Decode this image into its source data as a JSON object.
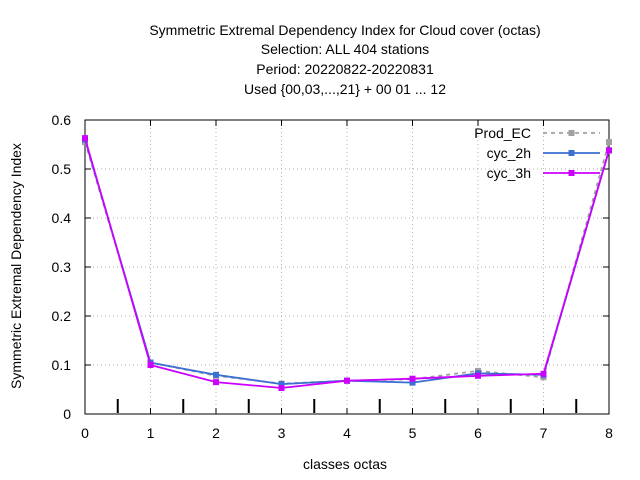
{
  "chart_data": {
    "type": "line",
    "title_lines": [
      "Symmetric Extremal Dependency Index  for Cloud cover (octas)",
      "Selection: ALL    404 stations",
      "Period: 20220822-20220831",
      "Used {00,03,...,21} + 00 01 ... 12"
    ],
    "xlabel": "classes octas",
    "ylabel": "Symmetric Extremal Dependency Index",
    "xlim": [
      0,
      8
    ],
    "ylim": [
      0,
      0.6
    ],
    "x_ticks": [
      "0",
      "1",
      "2",
      "3",
      "4",
      "5",
      "6",
      "7",
      "8"
    ],
    "y_ticks": [
      "0",
      "0.1",
      "0.2",
      "0.3",
      "0.4",
      "0.5",
      "0.6"
    ],
    "grid": true,
    "legend_position": "top-right",
    "x": [
      0,
      1,
      2,
      3,
      4,
      5,
      6,
      7,
      8
    ],
    "series": [
      {
        "name": "Prod_EC",
        "values": [
          0.555,
          0.105,
          0.078,
          0.062,
          0.068,
          0.071,
          0.088,
          0.075,
          0.555
        ],
        "color": "#a0a0a0",
        "dashed": true
      },
      {
        "name": "cyc_2h",
        "values": [
          0.56,
          0.105,
          0.08,
          0.061,
          0.068,
          0.064,
          0.083,
          0.08,
          0.538
        ],
        "color": "#3b6fd1",
        "dashed": false
      },
      {
        "name": "cyc_3h",
        "values": [
          0.563,
          0.1,
          0.065,
          0.053,
          0.068,
          0.072,
          0.078,
          0.082,
          0.538
        ],
        "color": "#cc00ff",
        "dashed": false
      }
    ],
    "bottom_markers_x": [
      0.5,
      1.5,
      2.5,
      3.5,
      4.5,
      5.5,
      6.5,
      7.5
    ]
  }
}
